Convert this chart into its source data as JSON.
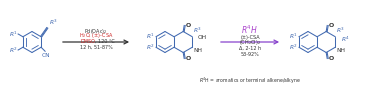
{
  "background_color": "#ffffff",
  "molecule_color": "#4169B0",
  "red_text_color": "#CC2222",
  "black_text_color": "#333333",
  "purple_text_color": "#AA44CC",
  "arrow1_color": "#333333",
  "arrow2_color": "#8844CC",
  "sub_R1": "R",
  "sub_R1_sup": "1",
  "sub_R2": "R",
  "sub_R2_sup": "2",
  "sub_R3": "R",
  "sub_R3_sup": "3",
  "sub_R4": "R",
  "sub_R4_sup": "4",
  "figwidth": 3.77,
  "figheight": 0.89,
  "dpi": 100
}
